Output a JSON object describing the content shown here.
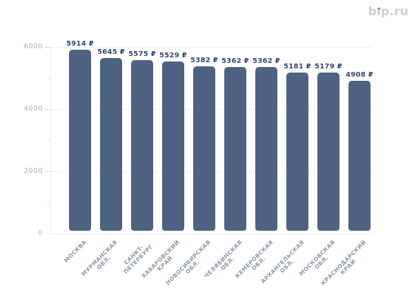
{
  "page": {
    "background": "#ffffff"
  },
  "logo": {
    "text": "bip.ru",
    "color": "#c8cdda",
    "dot_color": "#f0654a"
  },
  "chart_data": {
    "type": "bar",
    "title": "",
    "categories": [
      "МОСКВА",
      "МУРМАНСКАЯ ОБЛ.",
      "САНКТ-ПЕТЕРБУРГ",
      "ХАБАРОВСКИЙ КРАЙ",
      "НОВОСИБИРСКАЯ ОБЛ.",
      "ЧЕЛЯБИНСКАЯ ОБЛ.",
      "КЕМЕРОВСКАЯ ОБЛ.",
      "АРХАНГЕЛЬСКАЯ ОБЛ.",
      "МОСКОВСКАЯ ОБЛ.",
      "КРАСНОДАРСКИЙ КРАЙ"
    ],
    "category_label_lines": [
      [
        "МОСКВА"
      ],
      [
        "МУРМАНСКАЯ",
        "ОБЛ."
      ],
      [
        "САНКТ-",
        "ПЕТЕРБУРГ"
      ],
      [
        "ХАБАРОВСКИЙ",
        "КРАЙ"
      ],
      [
        "НОВОСИБИРСКАЯ",
        "ОБЛ."
      ],
      [
        "ЧЕЛЯБИНСКАЯ",
        "ОБЛ."
      ],
      [
        "КЕМЕРОВСКАЯ",
        "ОБЛ."
      ],
      [
        "АРХАНГЕЛЬСКАЯ",
        "ОБЛ."
      ],
      [
        "МОСКОВСКАЯ",
        "ОБЛ."
      ],
      [
        "КРАСНОДАРСКИЙ",
        "КРАЙ"
      ]
    ],
    "values": [
      5914,
      5645,
      5575,
      5529,
      5382,
      5362,
      5362,
      5181,
      5179,
      4908
    ],
    "value_labels": [
      "5914 ₽",
      "5645 ₽",
      "5575 ₽",
      "5529 ₽",
      "5382 ₽",
      "5362 ₽",
      "5362 ₽",
      "5181 ₽",
      "5179 ₽",
      "4908 ₽"
    ],
    "currency": "₽",
    "xlabel": "",
    "ylabel": "",
    "ylim": [
      0,
      6000
    ],
    "y_major_ticks": [
      0,
      2000,
      4000,
      6000
    ],
    "y_minor_ticks": [
      1000,
      3000,
      5000
    ],
    "grid": "dotted horizontal lines at major ticks",
    "legend": "none",
    "colors": {
      "bar": "#4e6382",
      "value_label": "#32476c",
      "axis_label": "#a6aebc",
      "category_label": "#8d97a6",
      "grid": "#dfe2e7",
      "axis_line": "#e7e9ed"
    }
  }
}
